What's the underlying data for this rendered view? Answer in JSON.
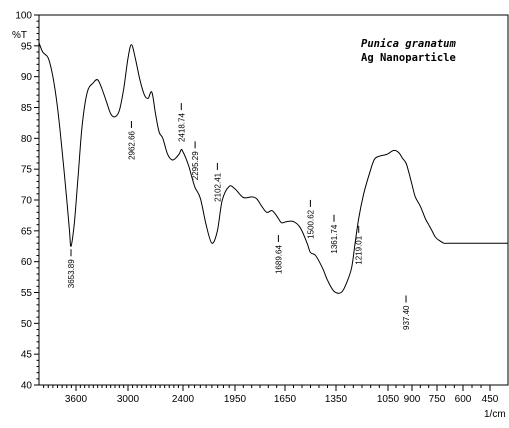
{
  "chart_data": {
    "type": "line",
    "title": "",
    "xlabel": "1/cm",
    "ylabel": "%T",
    "x_reversed": true,
    "xlim": [
      4000,
      400
    ],
    "ylim": [
      40,
      100
    ],
    "x_ticks": [
      3600,
      3000,
      2400,
      1950,
      1650,
      1350,
      1050,
      900,
      750,
      600,
      450
    ],
    "y_ticks": [
      40,
      45,
      50,
      55,
      60,
      65,
      70,
      75,
      80,
      85,
      90,
      95,
      100
    ],
    "grid": false,
    "legend": {
      "placement": "top-right",
      "lines": [
        "Punica granatum",
        "Ag Nanoparticle"
      ]
    },
    "series": [
      {
        "name": "",
        "color": "#000000",
        "x": [
          4000,
          3960,
          3900,
          3850,
          3800,
          3750,
          3700,
          3670,
          3653.89,
          3620,
          3580,
          3530,
          3470,
          3400,
          3350,
          3300,
          3250,
          3200,
          3150,
          3100,
          3050,
          3000,
          2962.66,
          2920,
          2870,
          2820,
          2780,
          2740,
          2700,
          2660,
          2620,
          2570,
          2520,
          2480,
          2440,
          2418.74,
          2400,
          2380,
          2350,
          2320,
          2295.29,
          2250,
          2200,
          2150,
          2102.41,
          2060,
          2000,
          1950,
          1900,
          1850,
          1820,
          1790,
          1760,
          1730,
          1710,
          1689.64,
          1670,
          1640,
          1600,
          1560,
          1520,
          1500.62,
          1470,
          1430,
          1400,
          1361.74,
          1320,
          1290,
          1260,
          1240,
          1219.01,
          1190,
          1160,
          1130,
          1100,
          1070,
          1050,
          1020,
          1000,
          980,
          960,
          937.4,
          920,
          900,
          880,
          850,
          820,
          800,
          780,
          760,
          740,
          710,
          690,
          670,
          650,
          620,
          600,
          590,
          570,
          550,
          530,
          510,
          490,
          470,
          450,
          430,
          410,
          400
        ],
        "y": [
          95.5,
          94,
          93,
          90,
          85,
          78,
          70,
          65,
          62.5,
          66,
          73,
          82,
          87.5,
          89,
          89.5,
          88,
          86,
          84,
          83.5,
          84.5,
          88,
          93,
          95.2,
          93,
          89.5,
          87,
          86.5,
          87.5,
          84,
          81,
          80,
          77.5,
          76.5,
          76.8,
          77.5,
          78.2,
          77.8,
          77,
          75.5,
          73.5,
          72,
          70.3,
          66,
          63,
          65,
          70,
          72.2,
          71.8,
          70.4,
          70.5,
          70.2,
          69,
          68,
          68.3,
          67.8,
          67,
          66.3,
          66.5,
          66.5,
          65.5,
          63,
          61.5,
          61,
          59,
          57,
          55.2,
          55,
          56.5,
          59,
          63,
          67,
          71,
          74,
          76.5,
          77.1,
          77.3,
          77.5,
          78,
          78,
          77.6,
          76.8,
          76,
          74.5,
          72.5,
          70.5,
          69,
          67,
          66,
          65,
          64,
          63.5,
          63,
          63,
          63,
          63,
          63,
          63,
          63,
          63,
          63,
          63,
          63,
          63,
          63,
          63,
          63,
          63,
          63
        ],
        "peaks": [
          {
            "x": 3653.89,
            "y": 62.5,
            "label": "3653.89"
          },
          {
            "x": 2962.66,
            "y": 83.3,
            "label": "2962.66"
          },
          {
            "x": 2418.74,
            "y": 86.2,
            "label": "2418.74"
          },
          {
            "x": 2295.29,
            "y": 80.0,
            "label": "2295.29"
          },
          {
            "x": 2102.41,
            "y": 76.5,
            "label": "2102.41"
          },
          {
            "x": 1689.64,
            "y": 64.8,
            "label": "1689.64"
          },
          {
            "x": 1500.62,
            "y": 70.5,
            "label": "1500.62"
          },
          {
            "x": 1361.74,
            "y": 68.1,
            "label": "1361.74"
          },
          {
            "x": 1219.01,
            "y": 66.3,
            "label": "1219.01"
          },
          {
            "x": 937.4,
            "y": 55.0,
            "label": "937.40"
          }
        ]
      }
    ]
  }
}
